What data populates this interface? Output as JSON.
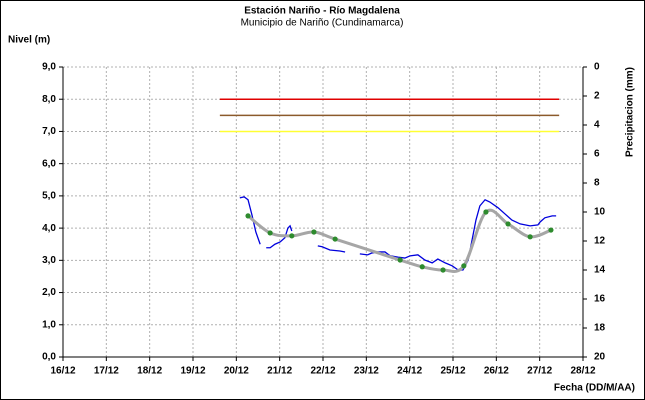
{
  "chart_data": {
    "type": "line",
    "title": "Estación Nariño - Río Magdalena",
    "subtitle": "Municipio de Nariño (Cundinamarca)",
    "y_label": "Nivel (m)",
    "y2_label": "Precipitacion (mm)",
    "x_label": "Fecha (DD/M/AA)",
    "xlim": [
      16,
      28
    ],
    "xticks": [
      {
        "value": 16,
        "label": "16/12"
      },
      {
        "value": 17,
        "label": "17/12"
      },
      {
        "value": 18,
        "label": "18/12"
      },
      {
        "value": 19,
        "label": "19/12"
      },
      {
        "value": 20,
        "label": "20/12"
      },
      {
        "value": 21,
        "label": "21/12"
      },
      {
        "value": 22,
        "label": "22/12"
      },
      {
        "value": 23,
        "label": "23/12"
      },
      {
        "value": 24,
        "label": "24/12"
      },
      {
        "value": 25,
        "label": "25/12"
      },
      {
        "value": 26,
        "label": "26/12"
      },
      {
        "value": 27,
        "label": "27/12"
      },
      {
        "value": 28,
        "label": "28/12"
      }
    ],
    "ylim": [
      0,
      9
    ],
    "yticks": [
      {
        "value": 0,
        "label": "0,0"
      },
      {
        "value": 1,
        "label": "1,0"
      },
      {
        "value": 2,
        "label": "2,0"
      },
      {
        "value": 3,
        "label": "3,0"
      },
      {
        "value": 4,
        "label": "4,0"
      },
      {
        "value": 5,
        "label": "5,0"
      },
      {
        "value": 6,
        "label": "6,0"
      },
      {
        "value": 7,
        "label": "7,0"
      },
      {
        "value": 8,
        "label": "8,0"
      },
      {
        "value": 9,
        "label": "9,0"
      }
    ],
    "y2lim": [
      20,
      0
    ],
    "y2ticks": [
      0,
      2,
      4,
      6,
      8,
      10,
      12,
      14,
      16,
      18,
      20
    ],
    "grid": true,
    "reference_lines": [
      {
        "value": 8.0,
        "color": "#e00000",
        "x": [
          19.62,
          27.45
        ]
      },
      {
        "value": 7.5,
        "color": "#8b5a2b",
        "x": [
          19.62,
          27.45
        ]
      },
      {
        "value": 7.0,
        "color": "#ffff33",
        "x": [
          19.62,
          27.45
        ]
      }
    ],
    "series": [
      {
        "color": "#0000dd",
        "smooth": false,
        "x": [
          20.08,
          20.18,
          20.27,
          20.36,
          20.45,
          20.55,
          20.62,
          20.69,
          20.78,
          20.89,
          21.01,
          21.12,
          21.19,
          21.24,
          21.28,
          21.58,
          21.88,
          21.98,
          22.16,
          22.39,
          22.51,
          22.68,
          22.85,
          23.03,
          23.13,
          23.27,
          23.43,
          23.55,
          23.73,
          23.89,
          24.01,
          24.19,
          24.35,
          24.52,
          24.65,
          24.82,
          24.98,
          25.12,
          25.23,
          25.35,
          25.44,
          25.53,
          25.62,
          25.74,
          25.85,
          26.04,
          26.2,
          26.36,
          26.55,
          26.78,
          26.96,
          27.01,
          27.12,
          27.29,
          27.38
        ],
        "values": [
          4.94,
          4.97,
          4.88,
          4.41,
          3.88,
          3.5,
          null,
          3.39,
          3.39,
          3.5,
          3.57,
          3.7,
          4.0,
          4.07,
          3.91,
          null,
          3.45,
          3.42,
          3.32,
          3.29,
          3.26,
          null,
          3.2,
          3.17,
          3.23,
          3.26,
          3.26,
          3.14,
          3.1,
          3.07,
          3.14,
          3.17,
          3.01,
          2.92,
          3.04,
          2.92,
          2.83,
          2.7,
          2.7,
          3.01,
          3.63,
          4.25,
          4.69,
          4.88,
          4.81,
          4.63,
          4.44,
          4.25,
          4.13,
          4.07,
          4.1,
          4.19,
          4.32,
          4.38,
          4.38
        ]
      },
      {
        "color": "#a6a6a6",
        "marker_color": "#2e8b2e",
        "smooth": true,
        "x": [
          20.27,
          20.78,
          21.28,
          21.79,
          22.28,
          23.78,
          24.29,
          24.77,
          25.25,
          25.76,
          26.27,
          26.78,
          27.26
        ],
        "values": [
          4.38,
          3.85,
          3.76,
          3.88,
          3.66,
          3.01,
          2.8,
          2.7,
          2.83,
          4.5,
          4.13,
          3.73,
          3.94
        ]
      }
    ]
  }
}
